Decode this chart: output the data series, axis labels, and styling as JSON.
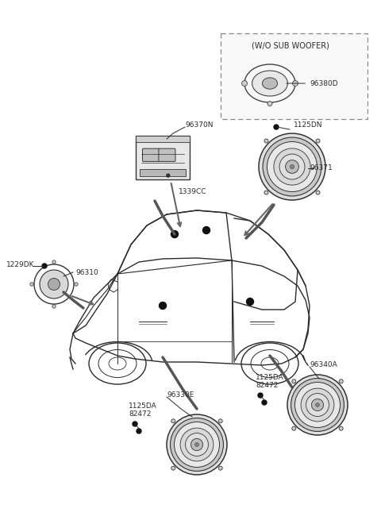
{
  "bg_color": "#ffffff",
  "fig_width": 4.8,
  "fig_height": 6.55,
  "dpi": 100,
  "labels": {
    "woofer_box": "(W/O SUB WOOFER)",
    "96380D": "96380D",
    "96370N": "96370N",
    "1339CC": "1339CC",
    "1125DN": "1125DN",
    "96371": "96371",
    "1229DK": "1229DK",
    "96310": "96310",
    "96340A": "96340A",
    "1125DA_r": "1125DA",
    "82472_r": "82472",
    "96330E": "96330E",
    "1125DA_l": "1125DA",
    "82472_l": "82472"
  },
  "font_size": 6.5,
  "line_color": "#2a2a2a",
  "line_color2": "#555555"
}
